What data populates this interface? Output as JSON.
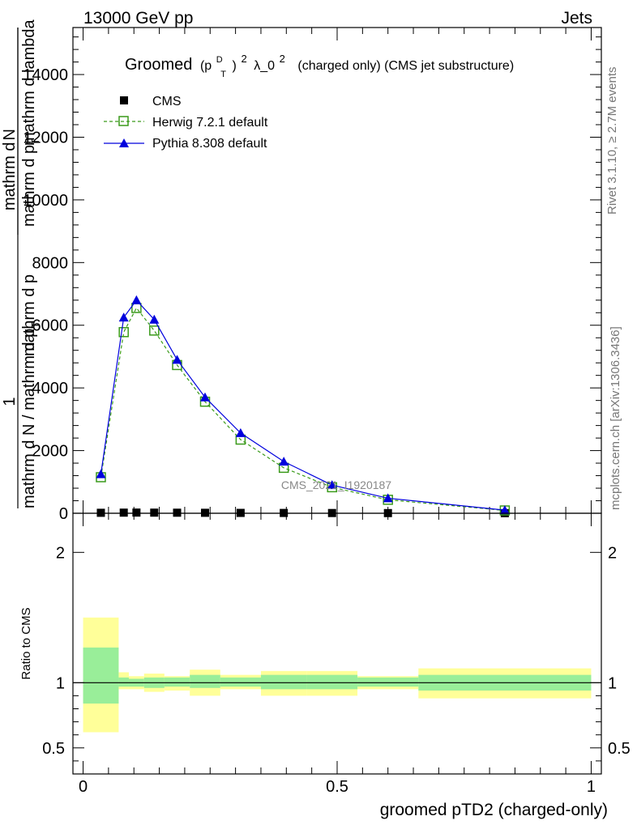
{
  "header": {
    "left": "13000 GeV pp",
    "right": "Jets"
  },
  "side_labels": {
    "rivet": "Rivet 3.1.10, ≥ 2.7M events",
    "mcplots": "mcplots.cern.ch [arXiv:1306.3436]"
  },
  "title": {
    "groomed": "Groomed",
    "p": "(p",
    "sup_d": "D",
    "sub_t": "T",
    "close": ")",
    "sup_2": "2",
    "lambda": "λ_0",
    "lambda_sup": "2",
    "rest": "(charged only) (CMS jet substructure)"
  },
  "ylabel": {
    "frac_one": "1",
    "frac_denom": "mathrm d N / mathrm d p",
    "frac_denom_sub": "T",
    "frac_denom2": "mathrm d p",
    "dn_top": "mathrm d",
    "dn_top2": "N",
    "dn_bottom": "mathrm d p",
    "dn_bottom_sub": "T",
    "dn_bottom2": "mathrm d lambda"
  },
  "watermark": "CMS_2021_I1920187",
  "ratio_ylabel": "Ratio to CMS",
  "xlabel": "groomed pTD2 (charged-only)",
  "legend": [
    {
      "name": "CMS",
      "marker": "square-filled",
      "color": "#000000"
    },
    {
      "name": "Herwig 7.2.1 default",
      "marker": "square-open",
      "color": "#3a9a1a",
      "dash": true
    },
    {
      "name": "Pythia 8.308 default",
      "marker": "triangle",
      "color": "#0000dd"
    }
  ],
  "chart_data": {
    "type": "line",
    "x_edges": [
      0,
      0.07,
      0.09,
      0.12,
      0.16,
      0.21,
      0.27,
      0.35,
      0.44,
      0.54,
      0.66,
      1.0
    ],
    "x_centers": [
      0.035,
      0.08,
      0.105,
      0.14,
      0.185,
      0.24,
      0.31,
      0.395,
      0.49,
      0.6,
      0.83
    ],
    "xlim": [
      -0.02,
      1.02
    ],
    "ylim": [
      0,
      15500
    ],
    "yticks": [
      0,
      2000,
      4000,
      6000,
      8000,
      10000,
      12000,
      14000
    ],
    "xticks": [
      0,
      0.5,
      1
    ],
    "xtick_labels": [
      "0",
      "0.5",
      "1"
    ],
    "series": [
      {
        "name": "CMS",
        "values": [
          15,
          20,
          22,
          20,
          18,
          15,
          12,
          10,
          8,
          6,
          3
        ]
      },
      {
        "name": "Herwig 7.2.1 default",
        "values": [
          1150,
          5780,
          6550,
          5830,
          4730,
          3560,
          2350,
          1450,
          830,
          430,
          90
        ]
      },
      {
        "name": "Pythia 8.308 default",
        "values": [
          1250,
          6250,
          6800,
          6180,
          4900,
          3700,
          2560,
          1650,
          900,
          480,
          100
        ]
      }
    ],
    "ratio": {
      "ylim": [
        0.3,
        2.3
      ],
      "yticks": [
        0.5,
        1,
        2
      ],
      "ytick_labels": [
        "0.5",
        "1",
        "2"
      ],
      "band_inner": [
        [
          0.84,
          1.27
        ],
        [
          0.97,
          1.04
        ],
        [
          0.97,
          1.03
        ],
        [
          0.96,
          1.04
        ],
        [
          0.97,
          1.04
        ],
        [
          0.96,
          1.06
        ],
        [
          0.97,
          1.04
        ],
        [
          0.95,
          1.06
        ],
        [
          0.95,
          1.06
        ],
        [
          0.97,
          1.04
        ],
        [
          0.94,
          1.06
        ]
      ],
      "band_outer": [
        [
          0.62,
          1.5
        ],
        [
          0.95,
          1.08
        ],
        [
          0.95,
          1.05
        ],
        [
          0.93,
          1.07
        ],
        [
          0.94,
          1.05
        ],
        [
          0.9,
          1.1
        ],
        [
          0.95,
          1.06
        ],
        [
          0.9,
          1.09
        ],
        [
          0.9,
          1.09
        ],
        [
          0.95,
          1.05
        ],
        [
          0.88,
          1.11
        ]
      ]
    }
  }
}
